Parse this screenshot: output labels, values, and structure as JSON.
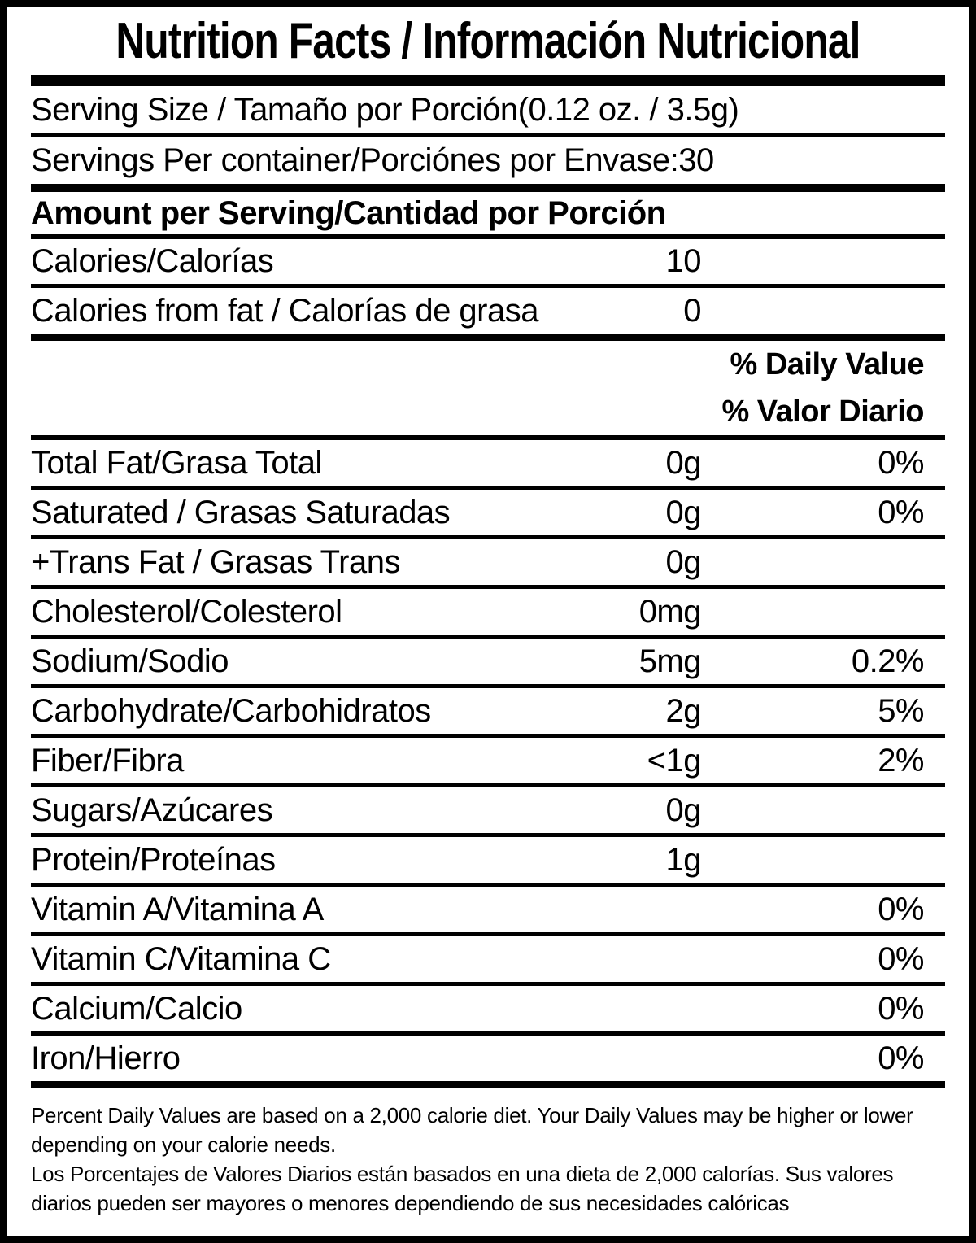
{
  "label": {
    "title": "Nutrition Facts / Información Nutricional",
    "serving": {
      "size_label": "Serving Size / Tamaño por Porción",
      "size_value": "(0.12 oz. / 3.5g)",
      "per_container_label": "Servings Per container/Porciónes por Envase:",
      "per_container_value": "30"
    },
    "amount_header": "Amount per Serving/Cantidad por Porción",
    "calories": {
      "label": "Calories/Calorías",
      "value": "10"
    },
    "calories_from_fat": {
      "label": "Calories from fat / Calorías de grasa",
      "value": "0"
    },
    "dv_header_en": "% Daily Value",
    "dv_header_es": "% Valor Diario",
    "rows": [
      {
        "label": "Total Fat/Grasa Total",
        "amount": "0g",
        "dv": "0%"
      },
      {
        "label": "Saturated / Grasas Saturadas",
        "amount": "0g",
        "dv": "0%"
      },
      {
        "label": "+Trans Fat / Grasas Trans",
        "amount": "0g",
        "dv": ""
      },
      {
        "label": "Cholesterol/Colesterol",
        "amount": "0mg",
        "dv": ""
      },
      {
        "label": "Sodium/Sodio",
        "amount": "5mg",
        "dv": "0.2%"
      },
      {
        "label": "Carbohydrate/Carbohidratos",
        "amount": "2g",
        "dv": "5%"
      },
      {
        "label": "Fiber/Fibra",
        "amount": "<1g",
        "dv": "2%"
      },
      {
        "label": "Sugars/Azúcares",
        "amount": "0g",
        "dv": ""
      },
      {
        "label": "Protein/Proteínas",
        "amount": "1g",
        "dv": ""
      },
      {
        "label": "Vitamin A/Vitamina A",
        "amount": "",
        "dv": "0%"
      },
      {
        "label": "Vitamin C/Vitamina C",
        "amount": "",
        "dv": "0%"
      },
      {
        "label": "Calcium/Calcio",
        "amount": "",
        "dv": "0%"
      },
      {
        "label": "Iron/Hierro",
        "amount": "",
        "dv": "0%"
      }
    ],
    "footnote_en": "Percent Daily Values are based on a 2,000 calorie diet. Your Daily Values may be higher or lower depending on your calorie needs.",
    "footnote_es": "Los Porcentajes de Valores Diarios están basados en una dieta de 2,000 calorías. Sus valores diarios pueden ser mayores o menores dependiendo de sus necesidades calóricas"
  },
  "colors": {
    "ink": "#000000",
    "paper": "#ffffff"
  }
}
